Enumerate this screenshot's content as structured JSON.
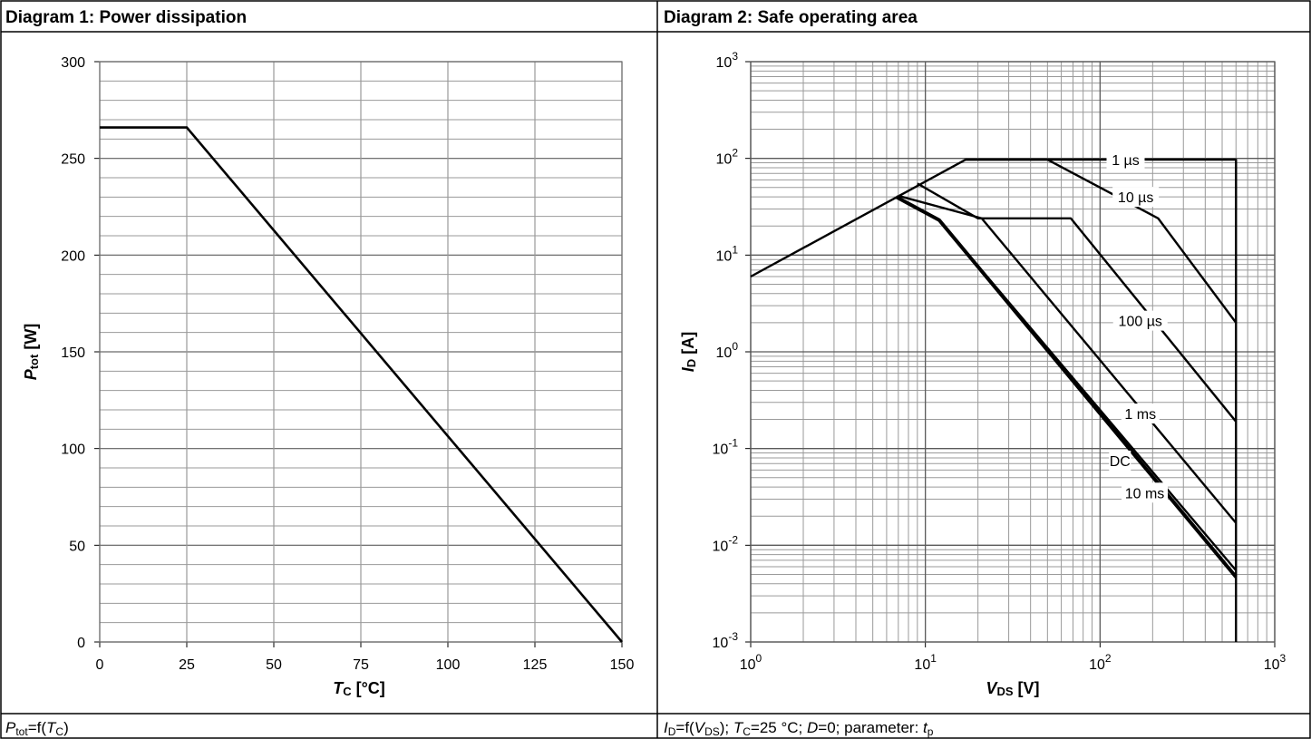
{
  "panels": [
    {
      "header": "Diagram 1: Power dissipation",
      "caption_parts": [
        "P",
        "tot",
        "=f(",
        "T",
        "C",
        ")"
      ]
    },
    {
      "header": "Diagram 2: Safe operating area",
      "caption_parts": [
        "I",
        "D",
        "=f(",
        "V",
        "DS",
        "); ",
        "T",
        "C",
        "=25 °C; ",
        "D",
        "=0; parameter: ",
        "t",
        "p"
      ]
    }
  ],
  "chart_data": [
    {
      "type": "line",
      "title": "Diagram 1: Power dissipation",
      "xlabel": {
        "main": "T",
        "sub": "C",
        "unit": " [°C]"
      },
      "ylabel": {
        "main": "P",
        "sub": "tot",
        "unit": " [W]"
      },
      "xlim": [
        0,
        150
      ],
      "ylim": [
        0,
        300
      ],
      "xticks": [
        0,
        25,
        50,
        75,
        100,
        125,
        150
      ],
      "yticks": [
        0,
        50,
        100,
        150,
        200,
        250,
        300
      ],
      "grid": true,
      "series": [
        {
          "x": [
            0,
            25,
            150
          ],
          "y": [
            266,
            266,
            0
          ]
        }
      ]
    },
    {
      "type": "line",
      "title": "Diagram 2: Safe operating area",
      "xscale": "log",
      "yscale": "log",
      "xlabel": {
        "main": "V",
        "sub": "DS",
        "unit": " [V]"
      },
      "ylabel": {
        "main": "I",
        "sub": "D",
        "unit": " [A]"
      },
      "xlim": [
        1,
        1000
      ],
      "ylim": [
        0.001,
        1000
      ],
      "xtick_exponents": [
        0,
        1,
        2,
        3
      ],
      "ytick_exponents": [
        -3,
        -2,
        -1,
        0,
        1,
        2,
        3
      ],
      "tick_base": "10",
      "grid": true,
      "series": [
        {
          "name": "1 µs",
          "x": [
            1,
            17,
            600,
            600
          ],
          "y": [
            6,
            97,
            97,
            29
          ]
        },
        {
          "name": "10 µs",
          "x": [
            17,
            50,
            215,
            600
          ],
          "y": [
            97,
            97,
            24,
            2
          ]
        },
        {
          "name": "100 µs",
          "x": [
            9,
            20,
            68,
            600
          ],
          "y": [
            55,
            24,
            24,
            0.19
          ]
        },
        {
          "name": "1 ms",
          "x": [
            7,
            21,
            600
          ],
          "y": [
            41,
            24,
            0.017
          ]
        },
        {
          "name": "10 ms",
          "x": [
            6.8,
            12,
            600
          ],
          "y": [
            40,
            23,
            0.0055
          ]
        },
        {
          "name": "DC",
          "x": [
            6.8,
            12,
            600
          ],
          "y": [
            40,
            23,
            0.0047
          ]
        },
        {
          "name": "",
          "x": [
            600,
            600
          ],
          "y": [
            97,
            0.001
          ]
        }
      ],
      "annotations": [
        {
          "text": "1 µs",
          "x": 140,
          "y": 97
        },
        {
          "text": "10 µs",
          "x": 160,
          "y": 40
        },
        {
          "text": "100 µs",
          "x": 170,
          "y": 2.1
        },
        {
          "text": "1 ms",
          "x": 170,
          "y": 0.23
        },
        {
          "text": "DC",
          "x": 130,
          "y": 0.075
        },
        {
          "text": "10 ms",
          "x": 180,
          "y": 0.035
        }
      ]
    }
  ]
}
